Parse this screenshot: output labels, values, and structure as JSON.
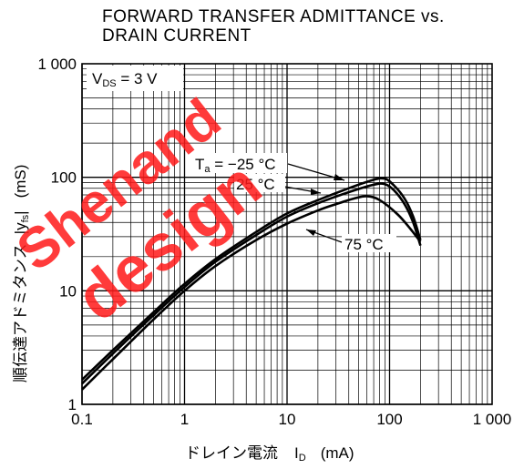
{
  "chart_data": {
    "type": "line",
    "title_lines": [
      "FORWARD TRANSFER ADMITTANCE vs.",
      "DRAIN CURRENT"
    ],
    "xlabel": {
      "text": "ドレイン電流",
      "symbol_main": "I",
      "symbol_sub": "D",
      "unit": "(mA)"
    },
    "ylabel": {
      "text": "順伝達アドミタンス",
      "symbol": "|y",
      "symbol_sub": "fs",
      "symbol_end": "|",
      "unit": "(mS)"
    },
    "x_scale": "log",
    "y_scale": "log",
    "xlim": [
      0.1,
      1000
    ],
    "ylim": [
      1,
      1000
    ],
    "x_ticks": [
      {
        "value": 0.1,
        "label": "0.1"
      },
      {
        "value": 1,
        "label": "1"
      },
      {
        "value": 10,
        "label": "10"
      },
      {
        "value": 100,
        "label": "100"
      },
      {
        "value": 1000,
        "label": "1 000"
      }
    ],
    "y_ticks": [
      {
        "value": 1,
        "label": "1"
      },
      {
        "value": 10,
        "label": "10"
      },
      {
        "value": 100,
        "label": "100"
      },
      {
        "value": 1000,
        "label": "1 000"
      }
    ],
    "grid": true,
    "condition": {
      "main": "V",
      "sub": "DS",
      "rest": " = 3 V"
    },
    "series": [
      {
        "name": "Ta = −25 °C",
        "x": [
          0.1,
          0.2,
          0.5,
          1,
          2,
          5,
          10,
          20,
          40,
          70,
          90,
          110,
          140,
          170,
          200
        ],
        "y": [
          1.65,
          3,
          6.5,
          11.5,
          19,
          33,
          48,
          63,
          80,
          95,
          97,
          85,
          65,
          45,
          28
        ]
      },
      {
        "name": "25 °C",
        "x": [
          0.1,
          0.2,
          0.5,
          1,
          2,
          5,
          10,
          20,
          40,
          70,
          90,
          110,
          140,
          170,
          200
        ],
        "y": [
          1.52,
          2.8,
          6.1,
          10.8,
          18,
          31,
          45,
          59,
          74,
          86,
          87,
          77,
          58,
          40,
          25
        ]
      },
      {
        "name": "75 °C",
        "x": [
          0.1,
          0.2,
          0.5,
          1,
          2,
          5,
          10,
          20,
          30,
          45,
          60,
          80,
          120,
          160,
          200
        ],
        "y": [
          1.35,
          2.5,
          5.6,
          10,
          16.5,
          28,
          39,
          51,
          58,
          65,
          68,
          63,
          47,
          35,
          27
        ]
      }
    ],
    "annotations": [
      {
        "text_main": "T",
        "text_sub": "a",
        "text_rest": " = −25 °C",
        "points_to": 0
      },
      {
        "text_main": "25 °C",
        "text_sub": "",
        "text_rest": "",
        "points_to": 1
      },
      {
        "text_main": "75 °C",
        "text_sub": "",
        "text_rest": "",
        "points_to": 2
      }
    ]
  },
  "watermark": [
    "Shenand",
    "design"
  ],
  "colors": {
    "ink": "#000000",
    "watermark": "#ff1a1a",
    "background": "#ffffff"
  }
}
